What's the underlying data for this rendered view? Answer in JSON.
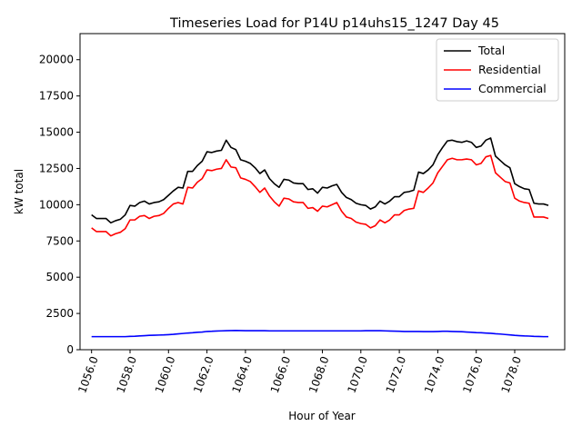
{
  "chart_data": {
    "type": "line",
    "title": "Timeseries Load for P14U p14uhs15_1247  Day 45",
    "xlabel": "Hour of Year",
    "ylabel": "kW total",
    "xlim": [
      1055.4,
      1080.6
    ],
    "ylim": [
      0,
      21800
    ],
    "x_start": 1056.0,
    "x_step": 0.25,
    "x_ticks": [
      1056,
      1058,
      1060,
      1062,
      1064,
      1066,
      1068,
      1070,
      1072,
      1074,
      1076,
      1078
    ],
    "x_tick_labels": [
      "1056.0",
      "1058.0",
      "1060.0",
      "1062.0",
      "1064.0",
      "1066.0",
      "1068.0",
      "1070.0",
      "1072.0",
      "1074.0",
      "1076.0",
      "1078.0"
    ],
    "y_ticks": [
      0,
      2500,
      5000,
      7500,
      10000,
      12500,
      15000,
      17500,
      20000
    ],
    "y_tick_labels": [
      "0",
      "2500",
      "5000",
      "7500",
      "10000",
      "12500",
      "15000",
      "17500",
      "20000"
    ],
    "legend_position": "top-right",
    "series": [
      {
        "name": "Total",
        "color": "#000000",
        "values": [
          9300,
          9050,
          9050,
          9050,
          8750,
          8900,
          9000,
          9300,
          9950,
          9900,
          10150,
          10250,
          10050,
          10150,
          10200,
          10350,
          10650,
          10950,
          11200,
          11150,
          12300,
          12300,
          12700,
          13000,
          13650,
          13600,
          13700,
          13750,
          14450,
          13950,
          13800,
          13100,
          13000,
          12850,
          12550,
          12150,
          12400,
          11800,
          11450,
          11200,
          11750,
          11700,
          11500,
          11450,
          11450,
          11050,
          11100,
          10800,
          11200,
          11150,
          11300,
          11400,
          10850,
          10500,
          10350,
          10100,
          10000,
          9950,
          9700,
          9850,
          10250,
          10050,
          10250,
          10550,
          10550,
          10850,
          10900,
          11000,
          12250,
          12150,
          12400,
          12750,
          13450,
          13950,
          14400,
          14450,
          14350,
          14300,
          14400,
          14300,
          13950,
          14050,
          14450,
          14600,
          13350,
          13050,
          12750,
          12550,
          11450,
          11250,
          11100,
          11050,
          10100,
          10050,
          10050,
          9950
        ]
      },
      {
        "name": "Residential",
        "color": "#ff0000",
        "values": [
          8400,
          8150,
          8150,
          8150,
          7850,
          8000,
          8100,
          8350,
          8950,
          8950,
          9200,
          9250,
          9050,
          9200,
          9250,
          9400,
          9750,
          10050,
          10150,
          10050,
          11200,
          11150,
          11550,
          11800,
          12400,
          12350,
          12450,
          12500,
          13100,
          12600,
          12550,
          11850,
          11750,
          11600,
          11250,
          10850,
          11150,
          10600,
          10200,
          9900,
          10450,
          10400,
          10200,
          10150,
          10150,
          9750,
          9800,
          9550,
          9900,
          9850,
          10000,
          10150,
          9550,
          9150,
          9050,
          8800,
          8700,
          8650,
          8400,
          8550,
          8950,
          8750,
          8950,
          9300,
          9300,
          9600,
          9700,
          9750,
          10950,
          10850,
          11150,
          11500,
          12200,
          12650,
          13100,
          13200,
          13100,
          13100,
          13150,
          13100,
          12750,
          12850,
          13300,
          13400,
          12200,
          11900,
          11600,
          11500,
          10450,
          10250,
          10150,
          10100,
          9150,
          9150,
          9150,
          9050
        ]
      },
      {
        "name": "Commercial",
        "color": "#0000ff",
        "values": [
          900,
          900,
          900,
          900,
          900,
          900,
          900,
          900,
          920,
          930,
          950,
          970,
          990,
          1000,
          1010,
          1020,
          1040,
          1060,
          1090,
          1120,
          1150,
          1170,
          1200,
          1220,
          1260,
          1270,
          1290,
          1300,
          1310,
          1320,
          1330,
          1320,
          1310,
          1310,
          1310,
          1310,
          1310,
          1300,
          1300,
          1300,
          1300,
          1300,
          1300,
          1300,
          1300,
          1300,
          1300,
          1300,
          1300,
          1300,
          1300,
          1300,
          1300,
          1300,
          1300,
          1300,
          1300,
          1310,
          1310,
          1310,
          1310,
          1300,
          1290,
          1280,
          1270,
          1260,
          1260,
          1260,
          1260,
          1250,
          1250,
          1250,
          1260,
          1270,
          1270,
          1260,
          1250,
          1240,
          1220,
          1200,
          1180,
          1170,
          1150,
          1130,
          1100,
          1080,
          1050,
          1020,
          990,
          970,
          950,
          940,
          920,
          910,
          900,
          900
        ]
      }
    ]
  }
}
